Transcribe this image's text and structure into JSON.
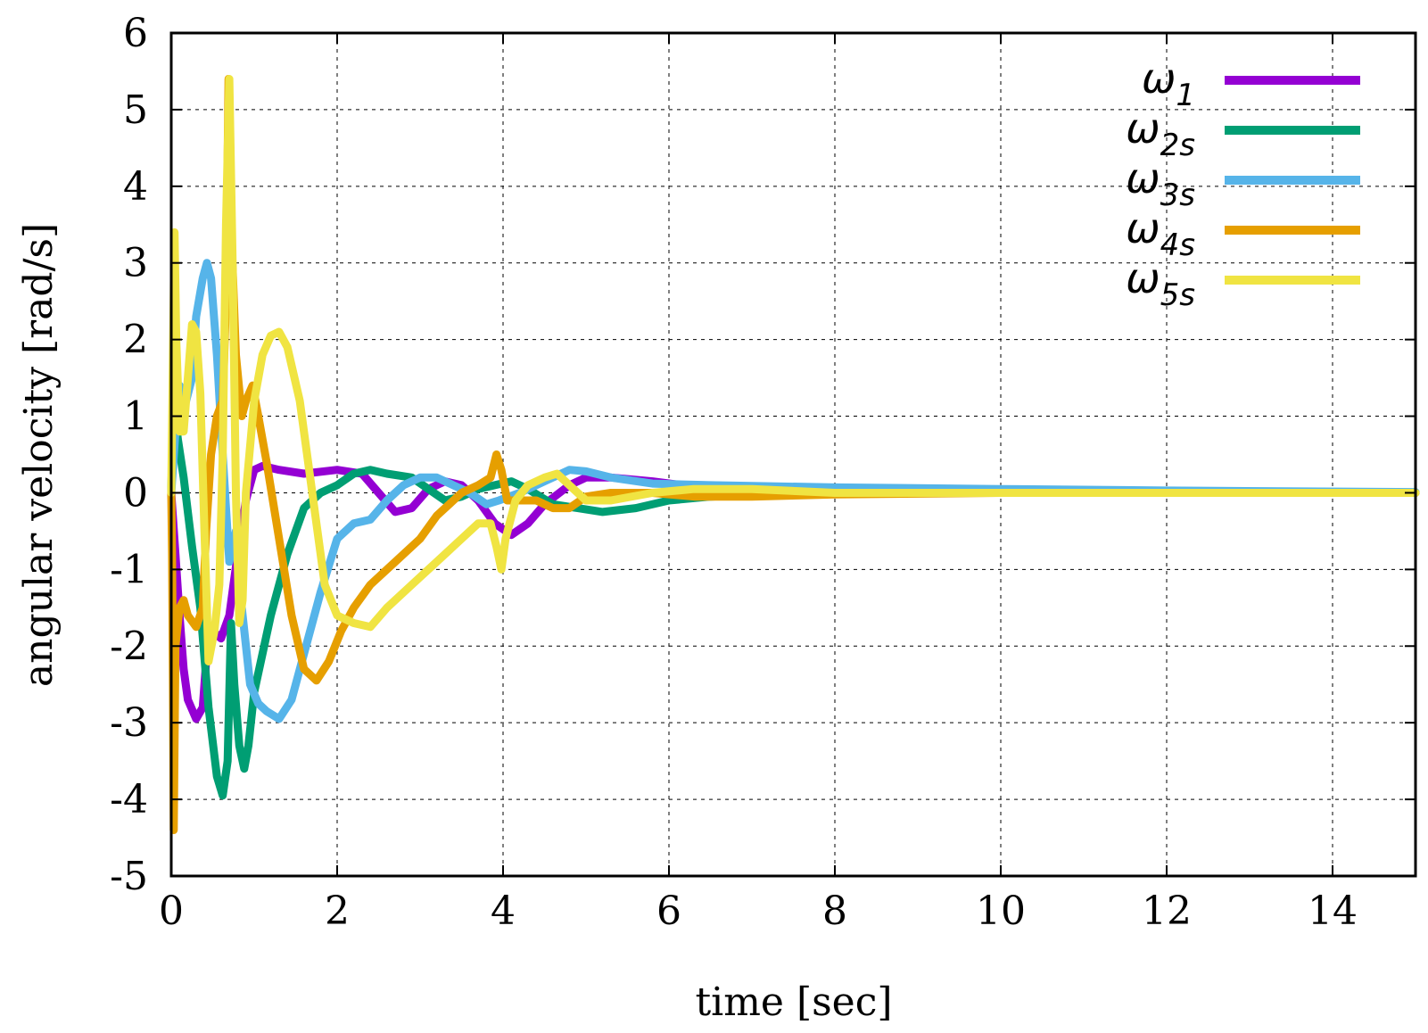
{
  "chart_data": {
    "type": "line",
    "title": "",
    "xlabel": "time [sec]",
    "ylabel": "angular velocity [rad/s]",
    "xlim": [
      0,
      15
    ],
    "ylim": [
      -5,
      6
    ],
    "xticks": [
      0,
      2,
      4,
      6,
      8,
      10,
      12,
      14
    ],
    "yticks": [
      -5,
      -4,
      -3,
      -2,
      -1,
      0,
      1,
      2,
      3,
      4,
      5,
      6
    ],
    "grid": true,
    "legend_position": "top-right",
    "series": [
      {
        "name": "ω1",
        "symbol": "ω",
        "subscript": "1",
        "color": "#9400d3",
        "points": [
          [
            0,
            0
          ],
          [
            0.05,
            -0.8
          ],
          [
            0.1,
            -1.6
          ],
          [
            0.15,
            -2.3
          ],
          [
            0.2,
            -2.7
          ],
          [
            0.3,
            -2.95
          ],
          [
            0.38,
            -2.8
          ],
          [
            0.42,
            -2.2
          ],
          [
            0.5,
            -1.8
          ],
          [
            0.6,
            -1.9
          ],
          [
            0.7,
            -1.6
          ],
          [
            0.8,
            -0.8
          ],
          [
            0.9,
            -0.1
          ],
          [
            1.0,
            0.3
          ],
          [
            1.1,
            0.35
          ],
          [
            1.3,
            0.3
          ],
          [
            1.6,
            0.25
          ],
          [
            2.0,
            0.3
          ],
          [
            2.3,
            0.25
          ],
          [
            2.5,
            0.0
          ],
          [
            2.7,
            -0.25
          ],
          [
            2.9,
            -0.2
          ],
          [
            3.1,
            0.05
          ],
          [
            3.3,
            0.15
          ],
          [
            3.5,
            0.1
          ],
          [
            3.7,
            -0.1
          ],
          [
            3.9,
            -0.4
          ],
          [
            4.1,
            -0.55
          ],
          [
            4.3,
            -0.4
          ],
          [
            4.5,
            -0.15
          ],
          [
            4.8,
            0.1
          ],
          [
            5.0,
            0.2
          ],
          [
            5.3,
            0.2
          ],
          [
            5.8,
            0.15
          ],
          [
            6.3,
            0.08
          ],
          [
            7,
            0.05
          ],
          [
            8,
            0.03
          ],
          [
            10,
            0.01
          ],
          [
            12,
            0.01
          ],
          [
            15,
            0
          ]
        ]
      },
      {
        "name": "ω2s",
        "symbol": "ω",
        "subscript": "2s",
        "color": "#009e73",
        "points": [
          [
            0,
            0
          ],
          [
            0.03,
            1.2
          ],
          [
            0.08,
            0.7
          ],
          [
            0.15,
            0.2
          ],
          [
            0.25,
            -0.7
          ],
          [
            0.35,
            -1.5
          ],
          [
            0.45,
            -2.8
          ],
          [
            0.55,
            -3.7
          ],
          [
            0.62,
            -3.95
          ],
          [
            0.68,
            -3.5
          ],
          [
            0.72,
            -1.7
          ],
          [
            0.76,
            -2.5
          ],
          [
            0.82,
            -3.3
          ],
          [
            0.88,
            -3.6
          ],
          [
            0.93,
            -3.3
          ],
          [
            1.0,
            -2.6
          ],
          [
            1.2,
            -1.6
          ],
          [
            1.4,
            -0.8
          ],
          [
            1.6,
            -0.2
          ],
          [
            1.8,
            0.0
          ],
          [
            2.0,
            0.1
          ],
          [
            2.2,
            0.25
          ],
          [
            2.4,
            0.3
          ],
          [
            2.6,
            0.25
          ],
          [
            2.9,
            0.2
          ],
          [
            3.1,
            0.05
          ],
          [
            3.3,
            -0.1
          ],
          [
            3.5,
            -0.05
          ],
          [
            3.7,
            0.05
          ],
          [
            3.9,
            0.1
          ],
          [
            4.1,
            0.15
          ],
          [
            4.3,
            0.05
          ],
          [
            4.6,
            -0.15
          ],
          [
            4.9,
            -0.2
          ],
          [
            5.2,
            -0.25
          ],
          [
            5.6,
            -0.2
          ],
          [
            6.0,
            -0.1
          ],
          [
            6.5,
            -0.05
          ],
          [
            7.5,
            0.0
          ],
          [
            9,
            0.0
          ],
          [
            15,
            0
          ]
        ]
      },
      {
        "name": "ω3s",
        "symbol": "ω",
        "subscript": "3s",
        "color": "#56b4e9",
        "points": [
          [
            0,
            0
          ],
          [
            0.05,
            0.8
          ],
          [
            0.1,
            1.4
          ],
          [
            0.18,
            1.2
          ],
          [
            0.25,
            1.5
          ],
          [
            0.3,
            2.3
          ],
          [
            0.38,
            2.8
          ],
          [
            0.43,
            3.0
          ],
          [
            0.48,
            2.8
          ],
          [
            0.55,
            1.8
          ],
          [
            0.62,
            0.5
          ],
          [
            0.7,
            -0.9
          ],
          [
            0.78,
            -0.5
          ],
          [
            0.85,
            -1.5
          ],
          [
            0.95,
            -2.5
          ],
          [
            1.05,
            -2.75
          ],
          [
            1.15,
            -2.85
          ],
          [
            1.3,
            -2.95
          ],
          [
            1.45,
            -2.7
          ],
          [
            1.6,
            -2.1
          ],
          [
            1.8,
            -1.3
          ],
          [
            2.0,
            -0.6
          ],
          [
            2.2,
            -0.4
          ],
          [
            2.4,
            -0.35
          ],
          [
            2.6,
            -0.1
          ],
          [
            2.8,
            0.1
          ],
          [
            3.0,
            0.2
          ],
          [
            3.2,
            0.2
          ],
          [
            3.4,
            0.1
          ],
          [
            3.6,
            0.0
          ],
          [
            3.8,
            -0.15
          ],
          [
            3.95,
            -0.1
          ],
          [
            4.2,
            0.0
          ],
          [
            4.5,
            0.15
          ],
          [
            4.8,
            0.3
          ],
          [
            5.0,
            0.28
          ],
          [
            5.3,
            0.2
          ],
          [
            5.8,
            0.12
          ],
          [
            6.5,
            0.1
          ],
          [
            8,
            0.07
          ],
          [
            10,
            0.05
          ],
          [
            12,
            0.03
          ],
          [
            15,
            0.01
          ]
        ]
      },
      {
        "name": "ω4s",
        "symbol": "ω",
        "subscript": "4s",
        "color": "#e69f00",
        "points": [
          [
            0,
            0
          ],
          [
            0.01,
            -0.8
          ],
          [
            0.02,
            -2.5
          ],
          [
            0.03,
            -4.4
          ],
          [
            0.05,
            -2.0
          ],
          [
            0.1,
            -1.5
          ],
          [
            0.15,
            -1.4
          ],
          [
            0.2,
            -1.6
          ],
          [
            0.3,
            -1.75
          ],
          [
            0.38,
            -1.5
          ],
          [
            0.42,
            -0.5
          ],
          [
            0.48,
            0.5
          ],
          [
            0.55,
            1.0
          ],
          [
            0.62,
            1.2
          ],
          [
            0.66,
            2.5
          ],
          [
            0.69,
            5.4
          ],
          [
            0.72,
            3.5
          ],
          [
            0.78,
            1.8
          ],
          [
            0.85,
            1.0
          ],
          [
            0.9,
            1.2
          ],
          [
            0.98,
            1.4
          ],
          [
            1.05,
            1.0
          ],
          [
            1.15,
            0.4
          ],
          [
            1.3,
            -0.6
          ],
          [
            1.45,
            -1.6
          ],
          [
            1.6,
            -2.3
          ],
          [
            1.75,
            -2.45
          ],
          [
            1.9,
            -2.2
          ],
          [
            2.05,
            -1.8
          ],
          [
            2.2,
            -1.5
          ],
          [
            2.4,
            -1.2
          ],
          [
            2.7,
            -0.9
          ],
          [
            3.0,
            -0.6
          ],
          [
            3.2,
            -0.3
          ],
          [
            3.5,
            0.0
          ],
          [
            3.7,
            0.1
          ],
          [
            3.85,
            0.2
          ],
          [
            3.92,
            0.5
          ],
          [
            3.98,
            0.3
          ],
          [
            4.05,
            -0.1
          ],
          [
            4.2,
            -0.1
          ],
          [
            4.4,
            -0.1
          ],
          [
            4.6,
            -0.2
          ],
          [
            4.8,
            -0.2
          ],
          [
            5.0,
            -0.05
          ],
          [
            5.3,
            0.0
          ],
          [
            5.8,
            0.0
          ],
          [
            6.3,
            -0.05
          ],
          [
            7,
            -0.05
          ],
          [
            8,
            -0.02
          ],
          [
            10,
            0.0
          ],
          [
            15,
            0
          ]
        ]
      },
      {
        "name": "ω5s",
        "symbol": "ω",
        "subscript": "5s",
        "color": "#f0e442",
        "points": [
          [
            0,
            0
          ],
          [
            0.02,
            1.8
          ],
          [
            0.04,
            3.4
          ],
          [
            0.06,
            2.0
          ],
          [
            0.1,
            0.8
          ],
          [
            0.15,
            0.8
          ],
          [
            0.2,
            1.5
          ],
          [
            0.25,
            2.2
          ],
          [
            0.3,
            2.1
          ],
          [
            0.35,
            1.3
          ],
          [
            0.4,
            -0.5
          ],
          [
            0.45,
            -2.2
          ],
          [
            0.52,
            -1.8
          ],
          [
            0.58,
            -1.2
          ],
          [
            0.62,
            0.5
          ],
          [
            0.66,
            3.5
          ],
          [
            0.7,
            5.4
          ],
          [
            0.74,
            3.0
          ],
          [
            0.78,
            0.0
          ],
          [
            0.82,
            -1.7
          ],
          [
            0.86,
            -1.4
          ],
          [
            0.9,
            0.0
          ],
          [
            1.0,
            1.2
          ],
          [
            1.1,
            1.8
          ],
          [
            1.2,
            2.05
          ],
          [
            1.3,
            2.1
          ],
          [
            1.4,
            1.9
          ],
          [
            1.55,
            1.2
          ],
          [
            1.7,
            0.0
          ],
          [
            1.85,
            -1.2
          ],
          [
            2.0,
            -1.6
          ],
          [
            2.2,
            -1.7
          ],
          [
            2.4,
            -1.75
          ],
          [
            2.6,
            -1.5
          ],
          [
            2.9,
            -1.2
          ],
          [
            3.2,
            -0.9
          ],
          [
            3.5,
            -0.6
          ],
          [
            3.7,
            -0.4
          ],
          [
            3.85,
            -0.4
          ],
          [
            3.92,
            -0.7
          ],
          [
            3.98,
            -1.0
          ],
          [
            4.03,
            -0.6
          ],
          [
            4.15,
            -0.1
          ],
          [
            4.3,
            0.1
          ],
          [
            4.5,
            0.2
          ],
          [
            4.65,
            0.25
          ],
          [
            4.8,
            0.1
          ],
          [
            5.0,
            -0.1
          ],
          [
            5.3,
            -0.1
          ],
          [
            5.8,
            0.0
          ],
          [
            6.3,
            0.05
          ],
          [
            7,
            0.05
          ],
          [
            8,
            0.0
          ],
          [
            10,
            0.0
          ],
          [
            15,
            0
          ]
        ]
      }
    ]
  }
}
